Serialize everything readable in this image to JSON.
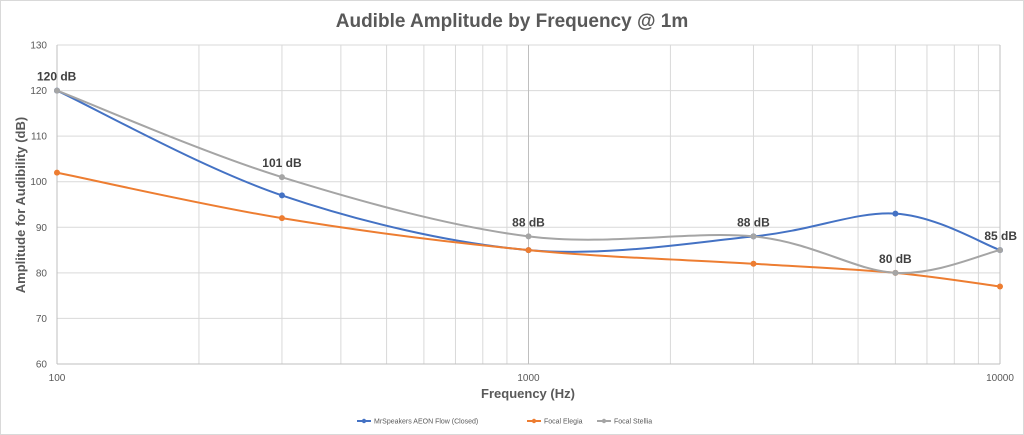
{
  "chart_data": {
    "type": "line",
    "title": "Audible Amplitude by Frequency @ 1m",
    "xlabel": "Frequency (Hz)",
    "ylabel": "Amplitude for Audibility (dB)",
    "x_scale": "log",
    "xlim": [
      100,
      10000
    ],
    "ylim": [
      60,
      130
    ],
    "x_ticks": [
      "100",
      "1000",
      "10000"
    ],
    "y_ticks": [
      "60",
      "70",
      "80",
      "90",
      "100",
      "110",
      "120",
      "130"
    ],
    "grid": true,
    "legend_position": "bottom",
    "series": [
      {
        "name": "MrSpeakers AEON Flow (Closed)",
        "color": "#4472c4",
        "x": [
          100,
          300,
          1000,
          3000,
          6000,
          10000
        ],
        "values": [
          120,
          97,
          85,
          88,
          93,
          85
        ]
      },
      {
        "name": "Focal Elegia",
        "color": "#ed7d31",
        "x": [
          100,
          300,
          1000,
          3000,
          6000,
          10000
        ],
        "values": [
          102,
          92,
          85,
          82,
          80,
          77
        ]
      },
      {
        "name": "Focal Stellia",
        "color": "#a5a5a5",
        "x": [
          100,
          300,
          1000,
          3000,
          6000,
          10000
        ],
        "values": [
          120,
          101,
          88,
          88,
          80,
          85
        ],
        "data_labels": [
          "120 dB",
          "101 dB",
          "88 dB",
          "88 dB",
          "80 dB",
          "85 dB"
        ]
      }
    ]
  }
}
